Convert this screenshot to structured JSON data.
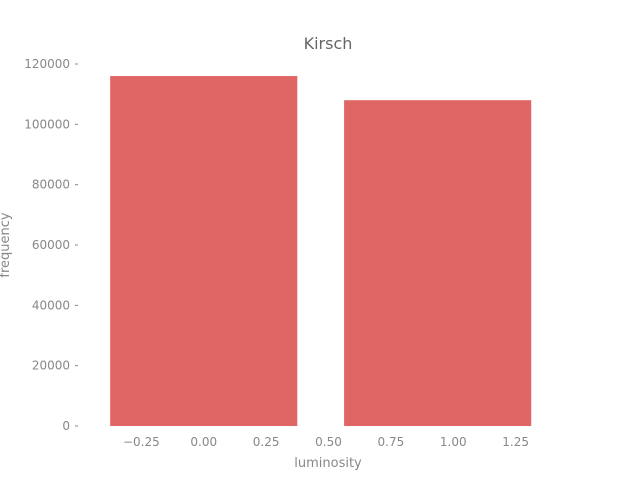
{
  "chart_data": {
    "type": "bar",
    "title": "Kirsch",
    "xlabel": "luminosity",
    "ylabel": "frequency",
    "bar_color": "#e06666",
    "bars": [
      {
        "x0": -0.375,
        "x1": 0.375,
        "value": 116000
      },
      {
        "x0": 0.5625,
        "x1": 1.3125,
        "value": 108000
      }
    ],
    "xlim": [
      -0.5,
      1.5
    ],
    "ylim": [
      0,
      120000
    ],
    "xticks": [
      -0.25,
      0.0,
      0.25,
      0.5,
      0.75,
      1.0,
      1.25
    ],
    "xtick_labels": [
      "−0.25",
      "0.00",
      "0.25",
      "0.50",
      "0.75",
      "1.00",
      "1.25"
    ],
    "yticks": [
      0,
      20000,
      40000,
      60000,
      80000,
      100000,
      120000
    ],
    "ytick_labels": [
      "0",
      "20000",
      "40000",
      "60000",
      "80000",
      "100000",
      "120000"
    ],
    "grid": false,
    "legend": "none"
  }
}
